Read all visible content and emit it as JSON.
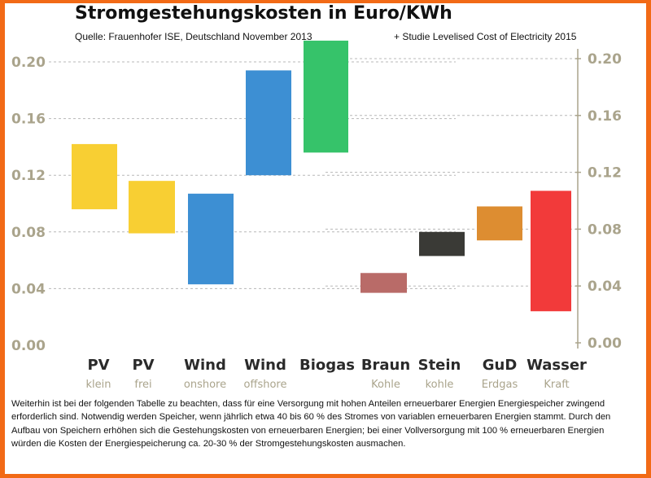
{
  "header": {
    "title": "Stromgestehungskosten in Euro/KWh",
    "source": "Quelle: Frauenhofer ISE, Deutschland November 2013",
    "study": "+ Studie Levelised Cost of Electricity 2015"
  },
  "note": "Weiterhin ist bei der folgenden Tabelle zu beachten, dass für eine Versorgung mit hohen Anteilen erneuerbarer Energien Energiespeicher zwingend erforderlich sind. Notwendig werden Speicher, wenn jährlich etwa 40 bis 60 % des Stromes von variablen erneuerbaren Energien stammt. Durch den Aufbau von Speichern erhöhen sich die Gestehungskosten von erneuerbaren Energien; bei einer Vollversorgung mit 100 % erneuerbaren Energien würden die Kosten der Energiespeicherung ca. 20-30 % der Stromgestehungskosten ausmachen.",
  "chart_data": {
    "type": "bar",
    "subtype": "floating-range",
    "title": "Stromgestehungskosten in Euro/KWh",
    "xlabel": "",
    "ylabel": "",
    "ylim": [
      0,
      0.21
    ],
    "yticks": [
      "0.00",
      "0.04",
      "0.08",
      "0.12",
      "0.16",
      "0.20"
    ],
    "grid": true,
    "categories": [
      {
        "main": "PV",
        "sub": "klein",
        "low": 0.096,
        "high": 0.142,
        "color": "#f8cf33"
      },
      {
        "main": "PV",
        "sub": "frei",
        "low": 0.079,
        "high": 0.116,
        "color": "#f8cf33"
      },
      {
        "main": "Wind",
        "sub": "onshore",
        "low": 0.043,
        "high": 0.107,
        "color": "#3d8fd3"
      },
      {
        "main": "Wind",
        "sub": "offshore",
        "low": 0.12,
        "high": 0.194,
        "color": "#3d8fd3"
      },
      {
        "main": "Biogas",
        "sub": "",
        "low": 0.136,
        "high": 0.215,
        "color": "#36c36a"
      },
      {
        "main": "Braun",
        "sub": "Kohle",
        "low": 0.037,
        "high": 0.051,
        "color": "#b96b68"
      },
      {
        "main": "Stein",
        "sub": "kohle",
        "low": 0.063,
        "high": 0.08,
        "color": "#3a3a36"
      },
      {
        "main": "GuD",
        "sub": "Erdgas",
        "low": 0.074,
        "high": 0.098,
        "color": "#dd8d31"
      },
      {
        "main": "Wasser",
        "sub": "Kraft",
        "low": 0.024,
        "high": 0.109,
        "color": "#f23a3a"
      }
    ]
  }
}
